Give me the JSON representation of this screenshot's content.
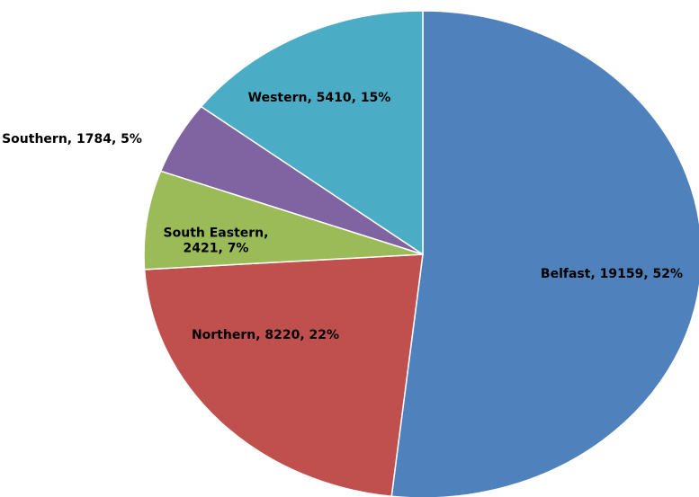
{
  "chart_data": {
    "type": "pie",
    "labels": [
      "Belfast, 19159, 52%",
      "Northern, 8220, 22%",
      "South Eastern,\n2421, 7%",
      "Southern, 1784, 5%",
      "Western, 5410, 15%"
    ],
    "values": [
      19159,
      8220,
      2421,
      1784,
      5410
    ],
    "colors": [
      "#4f81bd",
      "#c0504d",
      "#9bbb59",
      "#8064a2",
      "#4bacc6"
    ]
  }
}
